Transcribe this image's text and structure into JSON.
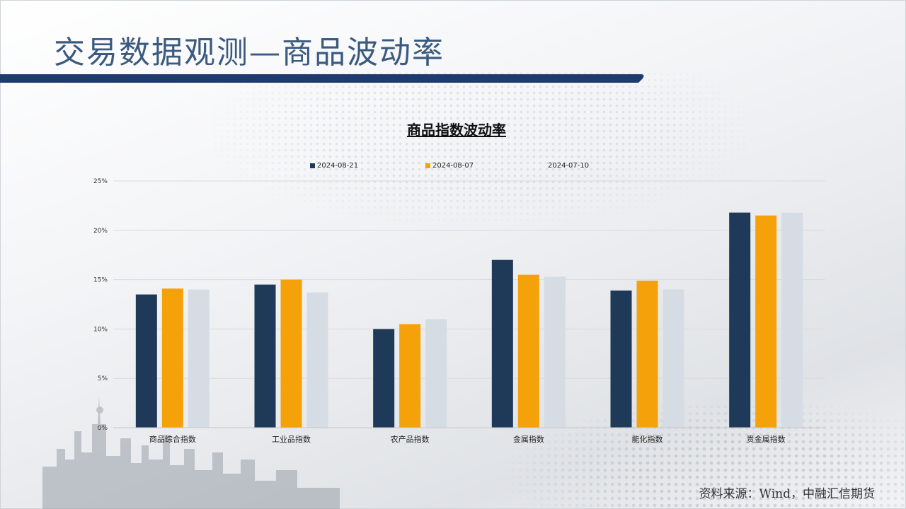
{
  "header": {
    "title": "交易数据观测—商品波动率"
  },
  "footer": {
    "source": "资料来源：Wind，中融汇信期货"
  },
  "colors": {
    "title_blue": "#3b5a80",
    "bar_navy": "#1f3a58",
    "accent_orange": "#f5a20a",
    "light_grey": "#d6dce4"
  },
  "chart_data": {
    "type": "bar",
    "title": "商品指数波动率",
    "categories": [
      "商品综合指数",
      "工业品指数",
      "农产品指数",
      "金属指数",
      "能化指数",
      "贵金属指数"
    ],
    "series": [
      {
        "name": "2024-08-21",
        "color": "#1f3a58",
        "values": [
          13.5,
          14.5,
          10.0,
          17.0,
          13.9,
          21.8
        ]
      },
      {
        "name": "2024-08-07",
        "color": "#f5a20a",
        "values": [
          14.1,
          15.0,
          10.5,
          15.5,
          14.9,
          21.5
        ]
      },
      {
        "name": "2024-07-10",
        "color": "#d6dce4",
        "values": [
          14.0,
          13.7,
          11.0,
          15.3,
          14.0,
          21.8
        ]
      }
    ],
    "y_ticks": [
      "0%",
      "5%",
      "10%",
      "15%",
      "20%",
      "25%"
    ],
    "ylim": [
      0,
      25
    ],
    "grid": true,
    "legend_position": "top"
  }
}
